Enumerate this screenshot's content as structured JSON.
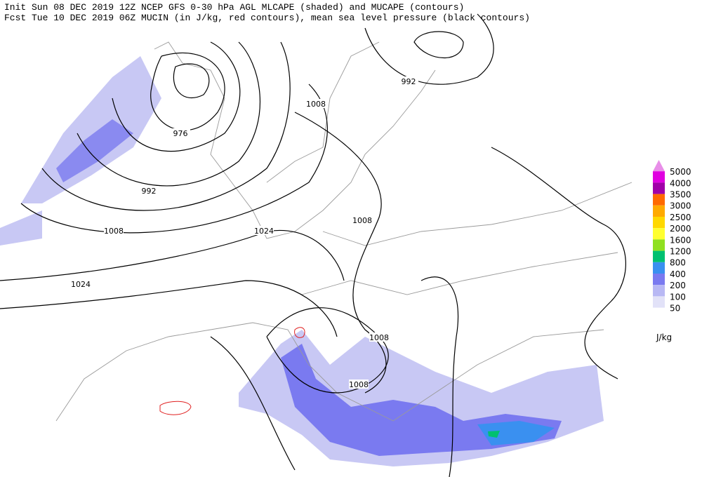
{
  "header": {
    "line1": "Init  Sun 08 DEC 2019 12Z  NCEP GFS 0-30 hPa AGL MLCAPE (shaded) and MUCAPE (contours)",
    "line2": "Fcst Tue 10 DEC 2019 06Z  MUCIN (in J/kg, red contours), mean sea level pressure (black contours)"
  },
  "contour_labels": [
    "976",
    "992",
    "1008",
    "1024",
    "1024",
    "1008",
    "992",
    "1008",
    "1008",
    "1008"
  ],
  "colorbar": {
    "levels": [
      {
        "label": "5000",
        "color": "#e88ee8"
      },
      {
        "label": "4000",
        "color": "#e000e0"
      },
      {
        "label": "3500",
        "color": "#a000a8"
      },
      {
        "label": "3000",
        "color": "#ff6a00"
      },
      {
        "label": "2500",
        "color": "#ffaa00"
      },
      {
        "label": "2000",
        "color": "#ffd800"
      },
      {
        "label": "1600",
        "color": "#ffff30"
      },
      {
        "label": "1200",
        "color": "#90e020"
      },
      {
        "label": "800",
        "color": "#00c070"
      },
      {
        "label": "400",
        "color": "#3a90f0"
      },
      {
        "label": "200",
        "color": "#7a7af0"
      },
      {
        "label": "100",
        "color": "#b8b8f4"
      },
      {
        "label": "50",
        "color": "#e2e2f8"
      }
    ],
    "unit": "J/kg"
  }
}
